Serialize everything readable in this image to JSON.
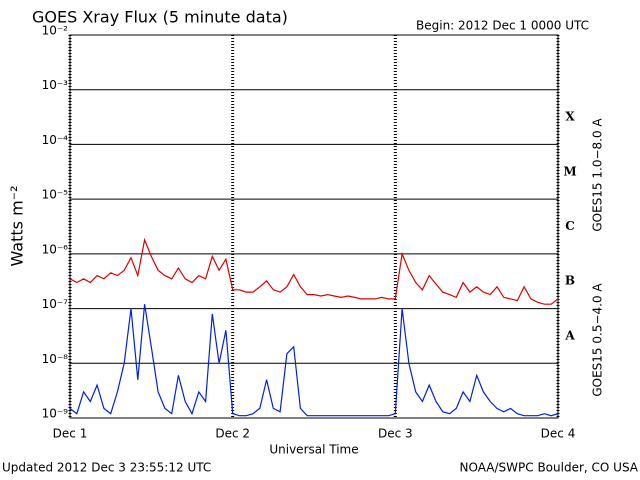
{
  "chart_data": {
    "type": "line",
    "title": "GOES Xray Flux (5 minute data)",
    "subtitle": "Begin:  2012 Dec 1 0000 UTC",
    "x_label": "Universal Time",
    "y_label": "Watts m⁻²",
    "footer_left": "Updated 2012 Dec  3 23:55:12 UTC",
    "footer_right": "NOAA/SWPC Boulder, CO USA",
    "flare_classes": [
      "X",
      "M",
      "C",
      "B",
      "A"
    ],
    "log_y": true,
    "grid": true,
    "xlim": [
      0,
      72
    ],
    "xticks": [
      {
        "value": 0,
        "label": "Dec 1"
      },
      {
        "value": 24,
        "label": "Dec 2"
      },
      {
        "value": 48,
        "label": "Dec 3"
      },
      {
        "value": 72,
        "label": "Dec 4"
      }
    ],
    "ylim": [
      1e-09,
      0.01
    ],
    "yticks": [
      {
        "value": 1e-09,
        "label": "10⁻⁹"
      },
      {
        "value": 1e-08,
        "label": "10⁻⁸"
      },
      {
        "value": 1e-07,
        "label": "10⁻⁷"
      },
      {
        "value": 1e-06,
        "label": "10⁻⁶"
      },
      {
        "value": 1e-05,
        "label": "10⁻⁵"
      },
      {
        "value": 0.0001,
        "label": "10⁻⁴"
      },
      {
        "value": 0.001,
        "label": "10⁻³"
      },
      {
        "value": 0.01,
        "label": "10⁻²"
      }
    ],
    "x": [
      0,
      1,
      2,
      3,
      4,
      5,
      6,
      7,
      8,
      9,
      10,
      11,
      12,
      13,
      14,
      15,
      16,
      17,
      18,
      19,
      20,
      21,
      22,
      23,
      24,
      25,
      26,
      27,
      28,
      29,
      30,
      31,
      32,
      33,
      34,
      35,
      36,
      37,
      38,
      39,
      40,
      41,
      42,
      43,
      44,
      45,
      46,
      47,
      48,
      49,
      50,
      51,
      52,
      53,
      54,
      55,
      56,
      57,
      58,
      59,
      60,
      61,
      62,
      63,
      64,
      65,
      66,
      67,
      68,
      69,
      70,
      71,
      72
    ],
    "series": [
      {
        "name": "GOES15 1.0−8.0 A",
        "color": "#e00000",
        "values": [
          3.5e-07,
          3e-07,
          3.5e-07,
          3e-07,
          4e-07,
          3.5e-07,
          4.5e-07,
          4e-07,
          5e-07,
          8.5e-07,
          4e-07,
          1.8e-06,
          9e-07,
          5e-07,
          4e-07,
          3.5e-07,
          5.5e-07,
          3.5e-07,
          3e-07,
          4e-07,
          3.5e-07,
          9e-07,
          5e-07,
          8e-07,
          2.2e-07,
          2.2e-07,
          2e-07,
          2e-07,
          2.5e-07,
          3.2e-07,
          2.2e-07,
          2e-07,
          2.5e-07,
          4.2e-07,
          2.5e-07,
          1.8e-07,
          1.8e-07,
          1.7e-07,
          1.8e-07,
          1.7e-07,
          1.6e-07,
          1.7e-07,
          1.6e-07,
          1.5e-07,
          1.5e-07,
          1.5e-07,
          1.6e-07,
          1.5e-07,
          1.5e-07,
          1e-06,
          5e-07,
          3e-07,
          2.2e-07,
          4e-07,
          2.8e-07,
          2e-07,
          1.8e-07,
          1.6e-07,
          3e-07,
          2e-07,
          2.5e-07,
          2e-07,
          1.8e-07,
          2.5e-07,
          1.6e-07,
          1.5e-07,
          1.4e-07,
          2.5e-07,
          1.5e-07,
          1.3e-07,
          1.2e-07,
          1.2e-07,
          1.5e-07
        ]
      },
      {
        "name": "GOES15 0.5−4.0 A",
        "color": "#0020e0",
        "values": [
          1.5e-09,
          1.2e-09,
          3e-09,
          2e-09,
          4e-09,
          1.5e-09,
          1.2e-09,
          3e-09,
          1e-08,
          1e-07,
          5e-09,
          1.2e-07,
          2e-08,
          3e-09,
          1.5e-09,
          1.2e-09,
          6e-09,
          2e-09,
          1.2e-09,
          3e-09,
          2e-09,
          8e-08,
          1e-08,
          4e-08,
          1.2e-09,
          1.1e-09,
          1.1e-09,
          1.2e-09,
          1.5e-09,
          5e-09,
          1.5e-09,
          1.3e-09,
          1.5e-08,
          2e-08,
          1.5e-09,
          1.1e-09,
          1.1e-09,
          1.1e-09,
          1.1e-09,
          1.1e-09,
          1.1e-09,
          1.1e-09,
          1.1e-09,
          1.1e-09,
          1.1e-09,
          1.1e-09,
          1.1e-09,
          1.1e-09,
          1.2e-09,
          1e-07,
          1e-08,
          3e-09,
          2e-09,
          4e-09,
          2e-09,
          1.3e-09,
          1.2e-09,
          1.5e-09,
          3e-09,
          2e-09,
          6e-09,
          3e-09,
          2e-09,
          1.5e-09,
          1.3e-09,
          1.5e-09,
          1.2e-09,
          1.1e-09,
          1.1e-09,
          1.1e-09,
          1.2e-09,
          1.1e-09,
          1.2e-09
        ]
      }
    ]
  }
}
